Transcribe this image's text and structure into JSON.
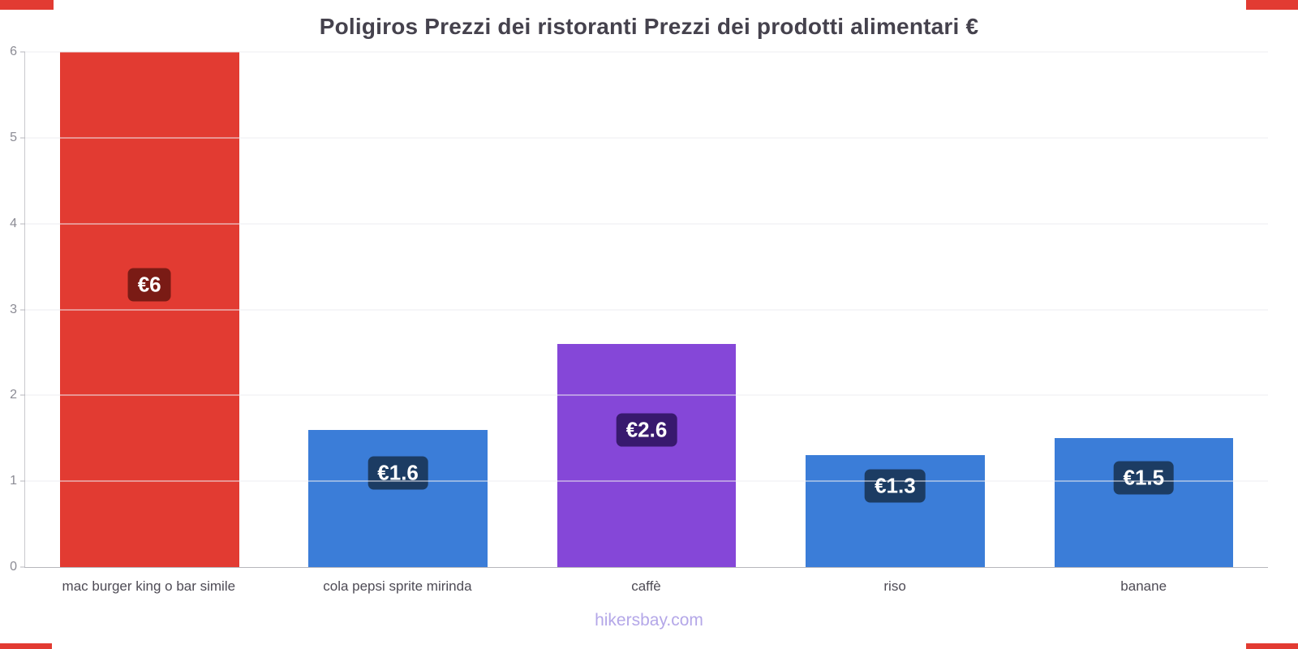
{
  "page": {
    "footer": "hikersbay.com",
    "accent_color": "#e23b32",
    "footer_color": "#b4a7e8",
    "background": "#ffffff"
  },
  "chart_data": {
    "type": "bar",
    "title": "Poligiros Prezzi dei ristoranti Prezzi dei prodotti alimentari €",
    "categories": [
      "mac burger king o bar simile",
      "cola pepsi sprite mirinda",
      "caffè",
      "riso",
      "banane"
    ],
    "values": [
      6,
      1.6,
      2.6,
      1.3,
      1.5
    ],
    "value_labels": [
      "€6",
      "€1.6",
      "€2.6",
      "€1.3",
      "€1.5"
    ],
    "bar_colors": [
      "#e23b32",
      "#3b7dd8",
      "#8547d8",
      "#3b7dd8",
      "#3b7dd8"
    ],
    "label_bg_colors": [
      "#7a1b15",
      "#1c3c63",
      "#38196e",
      "#1c3c63",
      "#1c3c63"
    ],
    "currency": "€",
    "xlabel": "",
    "ylabel": "",
    "ylim": [
      0,
      6
    ],
    "yticks": [
      0,
      1,
      2,
      3,
      4,
      5,
      6
    ],
    "grid": true,
    "legend": false
  }
}
